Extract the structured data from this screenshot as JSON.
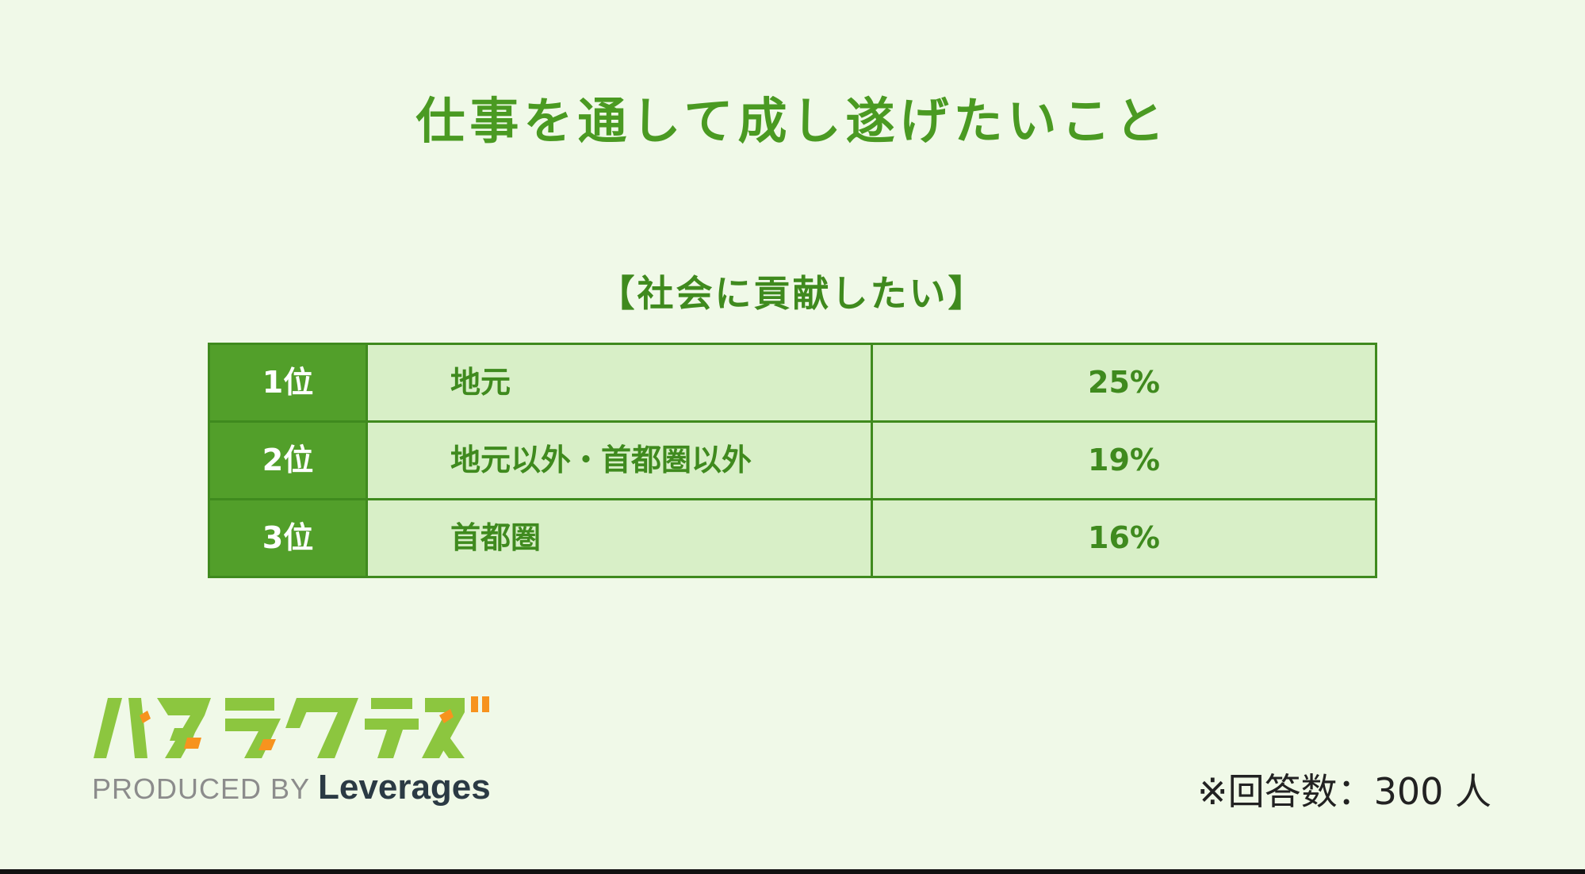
{
  "title": "仕事を通して成し遂げたいこと",
  "chart_data": {
    "type": "table",
    "title": "【社会に貢献したい】",
    "rows": [
      {
        "rank": "1位",
        "label": "地元",
        "value": "25%"
      },
      {
        "rank": "2位",
        "label": "地元以外・首都圏以外",
        "value": "19%"
      },
      {
        "rank": "3位",
        "label": "首都圏",
        "value": "16%"
      }
    ]
  },
  "footer": {
    "logo_text": "ハタラクティブ",
    "produced_by": "PRODUCED BY",
    "brand": "Leverages",
    "note": "※回答数：300 人"
  },
  "colors": {
    "background": "#f0f9e8",
    "title_green": "#4a9a22",
    "rank_cell": "#529f2a",
    "row_cell": "#d8efc7",
    "border": "#3f8a1e",
    "logo_green": "#8cc63f",
    "logo_orange": "#f7931e"
  }
}
